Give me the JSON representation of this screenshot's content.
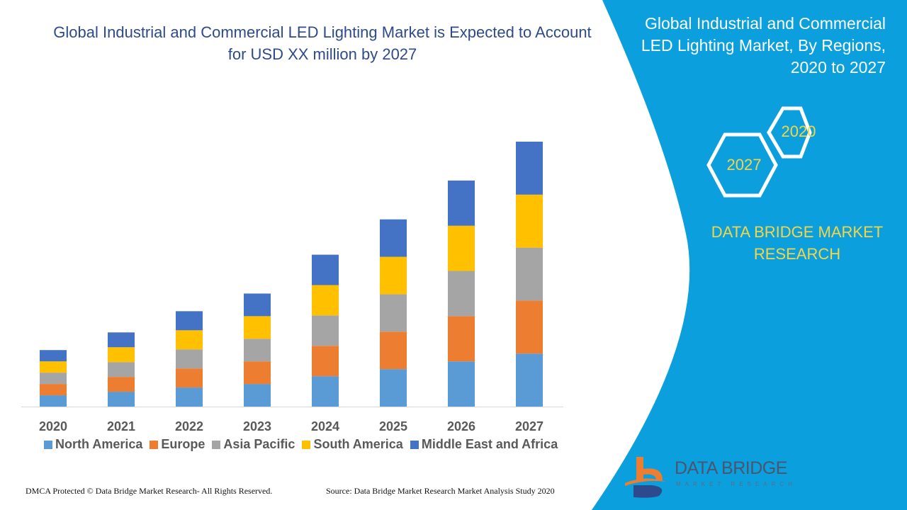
{
  "header": {
    "title": "Global Industrial and Commercial LED Lighting Market is Expected to Account for USD XX million by 2027"
  },
  "side": {
    "title": "Global Industrial and Commercial LED Lighting Market, By Regions, 2020 to 2027",
    "hex_a": "2020",
    "hex_b": "2027",
    "brand": "DATA BRIDGE MARKET RESEARCH"
  },
  "logo": {
    "name": "DATA BRIDGE",
    "sub": "MARKET RESEARCH"
  },
  "footer": {
    "left": "DMCA Protected © Data Bridge Market Research- All Rights Reserved.",
    "right": "Source: Data Bridge Market Research Market Analysis Study 2020"
  },
  "colors": {
    "panel": "#0ba0dd",
    "accent": "#f5d547"
  },
  "chart_data": {
    "type": "bar",
    "stacked": true,
    "grid": false,
    "legend": "bottom",
    "categories": [
      "2020",
      "2021",
      "2022",
      "2023",
      "2024",
      "2025",
      "2026",
      "2027"
    ],
    "series": [
      {
        "name": "North America",
        "color": "#5b9bd5",
        "values": [
          16,
          21,
          27,
          32,
          43,
          53,
          64,
          75
        ]
      },
      {
        "name": "Europe",
        "color": "#ed7d31",
        "values": [
          16,
          21,
          27,
          32,
          43,
          53,
          64,
          75
        ]
      },
      {
        "name": "Asia Pacific",
        "color": "#a5a5a5",
        "values": [
          16,
          21,
          27,
          32,
          43,
          53,
          64,
          75
        ]
      },
      {
        "name": "South America",
        "color": "#ffc000",
        "values": [
          16,
          21,
          27,
          32,
          43,
          53,
          64,
          75
        ]
      },
      {
        "name": "Middle East and Africa",
        "color": "#4472c4",
        "values": [
          16,
          21,
          27,
          32,
          43,
          53,
          64,
          75
        ]
      }
    ]
  }
}
